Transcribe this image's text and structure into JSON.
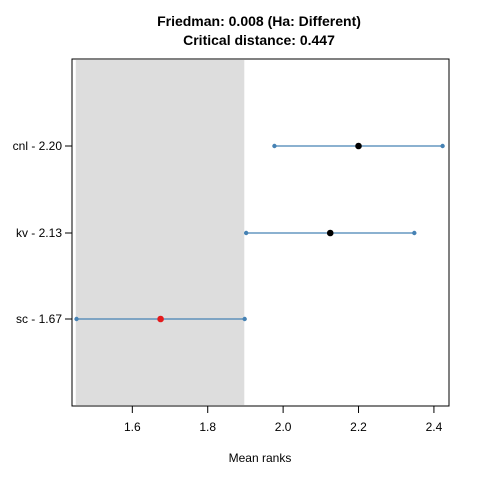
{
  "chart_data": {
    "type": "scatter",
    "title": "Friedman: 0.008 (Ha: Different)",
    "subtitle": "Critical distance: 0.447",
    "xlabel": "Mean ranks",
    "ylabel": "",
    "xlim": [
      1.44,
      2.44
    ],
    "xticks": [
      1.6,
      1.8,
      2.0,
      2.2,
      2.4
    ],
    "xtick_labels": [
      "1.6",
      "1.8",
      "2.0",
      "2.2",
      "2.4"
    ],
    "grid": false,
    "critical_region": {
      "from": 1.45,
      "to": 1.897,
      "color": "#dddddd"
    },
    "items": [
      {
        "label": "cnl - 2.20",
        "mean": 2.2,
        "lower": 1.977,
        "upper": 2.423,
        "point_color": "#000000"
      },
      {
        "label": "kv - 2.13",
        "mean": 2.125,
        "lower": 1.902,
        "upper": 2.348,
        "point_color": "#000000"
      },
      {
        "label": "sc - 1.67",
        "mean": 1.675,
        "lower": 1.452,
        "upper": 1.898,
        "point_color": "#e41a1c"
      }
    ],
    "interval_color": "#4682b4"
  }
}
